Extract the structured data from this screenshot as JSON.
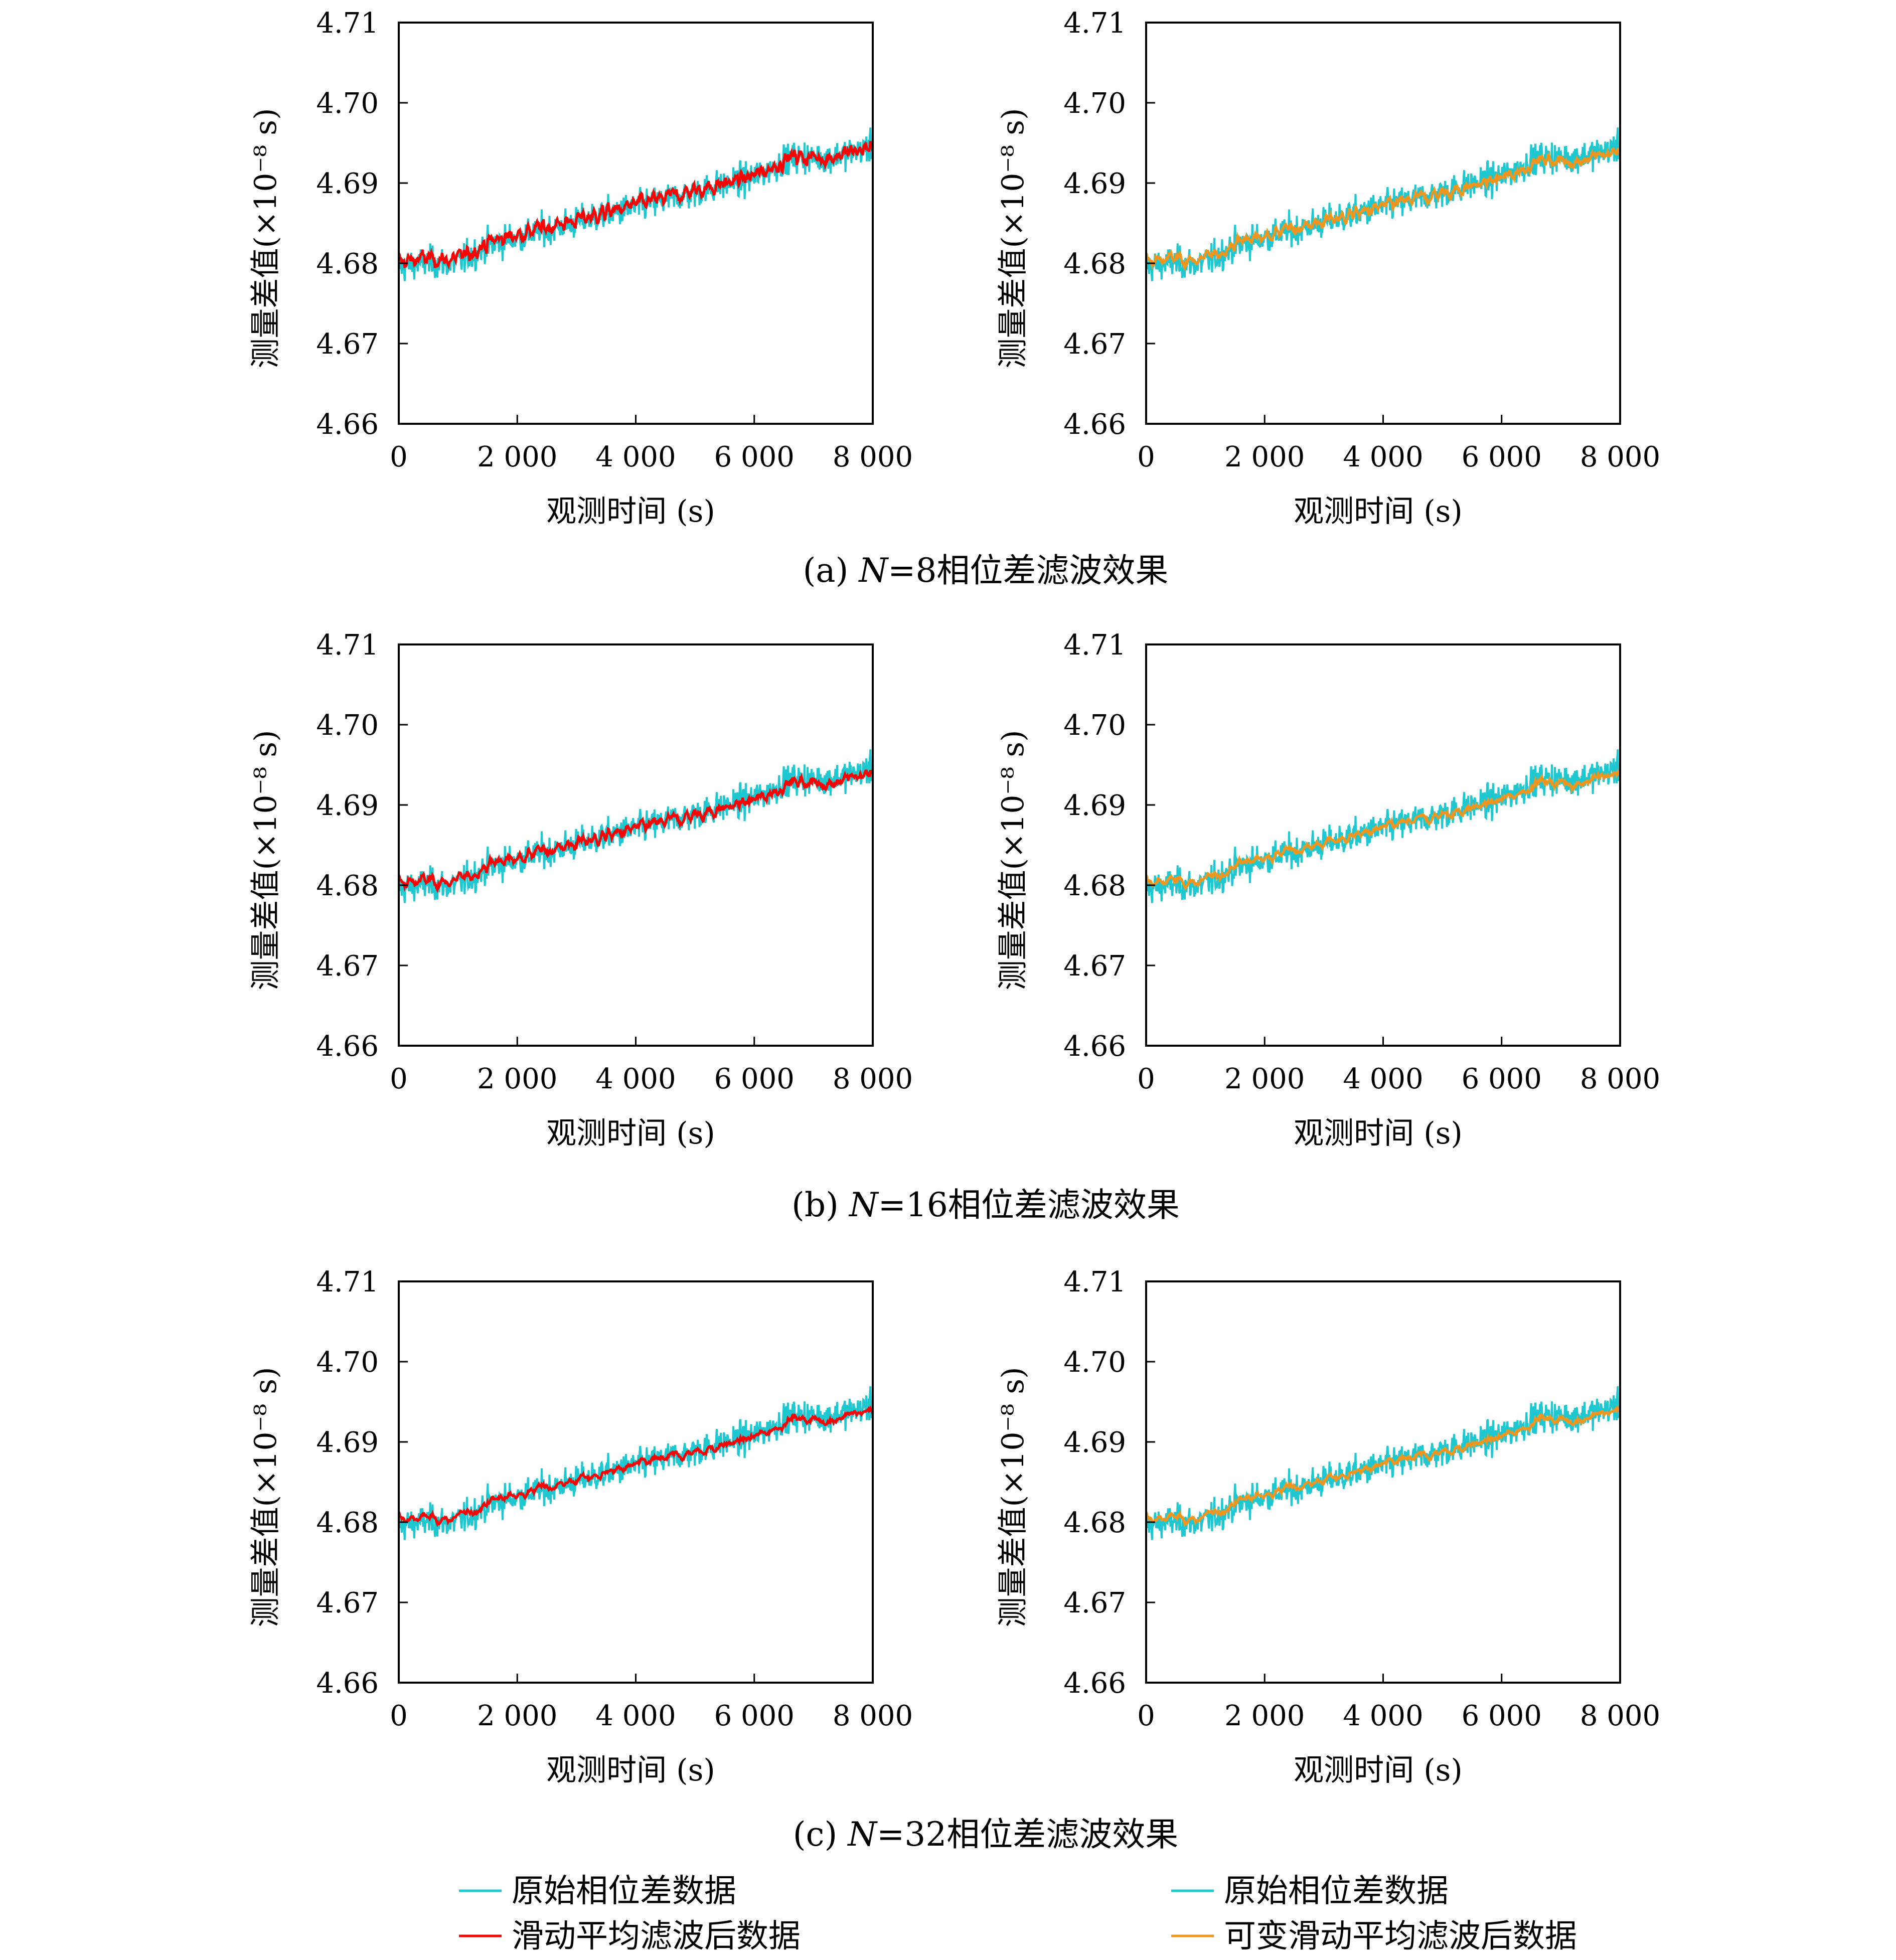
{
  "figure": {
    "ylabel": "测量差值(×10⁻⁸ s)",
    "xlabel": "观测时间 (s)",
    "captions": [
      {
        "prefix": "(a) ",
        "var": "N",
        "suffix": "=8相位差滤波效果"
      },
      {
        "prefix": "(b) ",
        "var": "N",
        "suffix": "=16相位差滤波效果"
      },
      {
        "prefix": "(c) ",
        "var": "N",
        "suffix": "=32相位差滤波效果"
      }
    ],
    "legend_left": [
      {
        "label": "原始相位差数据",
        "color": "#1fc8d0"
      },
      {
        "label": "滑动平均滤波后数据",
        "color": "#ff0000"
      }
    ],
    "legend_right": [
      {
        "label": "原始相位差数据",
        "color": "#1fc8d0"
      },
      {
        "label": "可变滑动平均滤波后数据",
        "color": "#f0961e"
      }
    ]
  },
  "chart_data": [
    {
      "panel": "a-left",
      "type": "line",
      "N": 8,
      "filter": "滑动平均滤波后数据",
      "x_range": [
        0,
        8000
      ],
      "ylim": [
        4.66,
        4.71
      ],
      "xticks": [
        "0",
        "2 000",
        "4 000",
        "6 000",
        "8 000"
      ],
      "yticks": [
        "4.66",
        "4.67",
        "4.68",
        "4.69",
        "4.70",
        "4.71"
      ],
      "series": [
        {
          "name": "原始相位差数据",
          "color": "#1fc8d0",
          "trend_start": 4.6795,
          "trend_end": 4.6945,
          "spread": 0.0075
        },
        {
          "name": "滑动平均滤波后数据",
          "color": "#ff0000",
          "trend_start": 4.68,
          "trend_end": 4.6945,
          "spread": 0.004
        }
      ]
    },
    {
      "panel": "a-right",
      "type": "line",
      "N": 8,
      "filter": "可变滑动平均滤波后数据",
      "x_range": [
        0,
        8000
      ],
      "ylim": [
        4.66,
        4.71
      ],
      "xticks": [
        "0",
        "2 000",
        "4 000",
        "6 000",
        "8 000"
      ],
      "yticks": [
        "4.66",
        "4.67",
        "4.68",
        "4.69",
        "4.70",
        "4.71"
      ],
      "series": [
        {
          "name": "原始相位差数据",
          "color": "#1fc8d0",
          "trend_start": 4.6795,
          "trend_end": 4.6945,
          "spread": 0.0075
        },
        {
          "name": "可变滑动平均滤波后数据",
          "color": "#f0961e",
          "trend_start": 4.68,
          "trend_end": 4.694,
          "spread": 0.0025
        }
      ]
    },
    {
      "panel": "b-left",
      "type": "line",
      "N": 16,
      "filter": "滑动平均滤波后数据",
      "x_range": [
        0,
        8000
      ],
      "ylim": [
        4.66,
        4.71
      ],
      "xticks": [
        "0",
        "2 000",
        "4 000",
        "6 000",
        "8 000"
      ],
      "yticks": [
        "4.66",
        "4.67",
        "4.68",
        "4.69",
        "4.70",
        "4.71"
      ],
      "series": [
        {
          "name": "原始相位差数据",
          "color": "#1fc8d0",
          "trend_start": 4.6795,
          "trend_end": 4.6945,
          "spread": 0.0075
        },
        {
          "name": "滑动平均滤波后数据",
          "color": "#ff0000",
          "trend_start": 4.68,
          "trend_end": 4.694,
          "spread": 0.0022
        }
      ]
    },
    {
      "panel": "b-right",
      "type": "line",
      "N": 16,
      "filter": "可变滑动平均滤波后数据",
      "x_range": [
        0,
        8000
      ],
      "ylim": [
        4.66,
        4.71
      ],
      "xticks": [
        "0",
        "2 000",
        "4 000",
        "6 000",
        "8 000"
      ],
      "yticks": [
        "4.66",
        "4.67",
        "4.68",
        "4.69",
        "4.70",
        "4.71"
      ],
      "series": [
        {
          "name": "原始相位差数据",
          "color": "#1fc8d0",
          "trend_start": 4.6795,
          "trend_end": 4.6945,
          "spread": 0.0075
        },
        {
          "name": "可变滑动平均滤波后数据",
          "color": "#f0961e",
          "trend_start": 4.68,
          "trend_end": 4.694,
          "spread": 0.0016
        }
      ]
    },
    {
      "panel": "c-left",
      "type": "line",
      "N": 32,
      "filter": "滑动平均滤波后数据",
      "x_range": [
        0,
        8000
      ],
      "ylim": [
        4.66,
        4.71
      ],
      "xticks": [
        "0",
        "2 000",
        "4 000",
        "6 000",
        "8 000"
      ],
      "yticks": [
        "4.66",
        "4.67",
        "4.68",
        "4.69",
        "4.70",
        "4.71"
      ],
      "series": [
        {
          "name": "原始相位差数据",
          "color": "#1fc8d0",
          "trend_start": 4.6795,
          "trend_end": 4.6945,
          "spread": 0.0075
        },
        {
          "name": "滑动平均滤波后数据",
          "color": "#ff0000",
          "trend_start": 4.68,
          "trend_end": 4.694,
          "spread": 0.0013
        }
      ]
    },
    {
      "panel": "c-right",
      "type": "line",
      "N": 32,
      "filter": "可变滑动平均滤波后数据",
      "x_range": [
        0,
        8000
      ],
      "ylim": [
        4.66,
        4.71
      ],
      "xticks": [
        "0",
        "2 000",
        "4 000",
        "6 000",
        "8 000"
      ],
      "yticks": [
        "4.66",
        "4.67",
        "4.68",
        "4.69",
        "4.70",
        "4.71"
      ],
      "series": [
        {
          "name": "原始相位差数据",
          "color": "#1fc8d0",
          "trend_start": 4.6795,
          "trend_end": 4.6945,
          "spread": 0.0075
        },
        {
          "name": "可变滑动平均滤波后数据",
          "color": "#f0961e",
          "trend_start": 4.68,
          "trend_end": 4.694,
          "spread": 0.0013
        }
      ]
    }
  ]
}
